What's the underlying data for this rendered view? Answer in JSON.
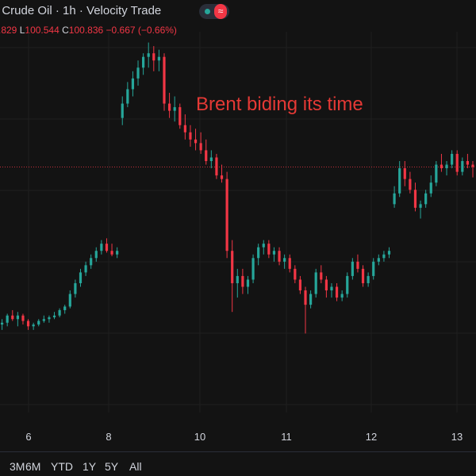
{
  "header": {
    "title_text": "t Crude Oil · 1h · Velocity Trade",
    "status_wave_glyph": "≈",
    "ohlc": {
      "h_value": ".829",
      "l_key": "L",
      "l_value": "100.544",
      "c_key": "C",
      "c_value": "100.836",
      "change": "−0.667 (−0.66%)"
    }
  },
  "annotation": "Brent biding its time",
  "range_buttons": [
    "3M",
    "6M",
    "YTD",
    "1Y",
    "5Y",
    "All"
  ],
  "colors": {
    "background": "#131313",
    "up": "#26a69a",
    "down": "#f23645",
    "grid": "#1f1f1f",
    "annotation": "#e53935",
    "price_line": "#f23645"
  },
  "chart_data": {
    "type": "candlestick",
    "x_ticks": [
      "6",
      "8",
      "10",
      "11",
      "12",
      "13"
    ],
    "x_tick_positions": [
      5.5,
      7.5,
      9.5,
      11,
      12.5,
      13.8
    ],
    "y_range": [
      94.0,
      104.6
    ],
    "current_price": 100.836,
    "grid": true,
    "series": [
      {
        "name": "",
        "values": [
          [
            96.35,
            96.55,
            96.2,
            96.45
          ],
          [
            96.45,
            96.6,
            96.3,
            96.5
          ],
          [
            96.5,
            96.75,
            96.4,
            96.7
          ],
          [
            96.7,
            96.85,
            96.55,
            96.6
          ],
          [
            96.6,
            96.8,
            96.4,
            96.7
          ],
          [
            96.7,
            96.75,
            96.45,
            96.55
          ],
          [
            96.55,
            96.6,
            96.3,
            96.4
          ],
          [
            96.4,
            96.5,
            96.3,
            96.45
          ],
          [
            96.45,
            96.6,
            96.4,
            96.55
          ],
          [
            96.55,
            96.7,
            96.5,
            96.6
          ],
          [
            96.6,
            96.7,
            96.5,
            96.65
          ],
          [
            96.65,
            96.8,
            96.6,
            96.7
          ],
          [
            96.7,
            96.9,
            96.65,
            96.85
          ],
          [
            96.85,
            97.0,
            96.75,
            96.95
          ],
          [
            96.95,
            97.4,
            96.9,
            97.3
          ],
          [
            97.3,
            97.7,
            97.2,
            97.6
          ],
          [
            97.6,
            98.0,
            97.5,
            97.9
          ],
          [
            97.9,
            98.2,
            97.8,
            98.1
          ],
          [
            98.1,
            98.4,
            98.0,
            98.3
          ],
          [
            98.3,
            98.6,
            98.2,
            98.5
          ],
          [
            98.5,
            98.8,
            98.4,
            98.7
          ],
          [
            98.7,
            98.85,
            98.45,
            98.5
          ],
          [
            98.5,
            98.7,
            98.35,
            98.4
          ],
          [
            98.4,
            98.6,
            98.3,
            98.5
          ],
          [
            102.2,
            102.8,
            102.0,
            102.6
          ],
          [
            102.6,
            103.2,
            102.5,
            103.0
          ],
          [
            103.0,
            103.5,
            102.8,
            103.3
          ],
          [
            103.3,
            103.8,
            103.1,
            103.6
          ],
          [
            103.6,
            104.0,
            103.4,
            103.9
          ],
          [
            103.9,
            104.3,
            103.6,
            104.0
          ],
          [
            104.0,
            104.2,
            103.5,
            103.8
          ],
          [
            103.8,
            104.1,
            103.5,
            103.9
          ],
          [
            103.9,
            104.0,
            102.4,
            102.6
          ],
          [
            102.6,
            102.9,
            102.2,
            102.4
          ],
          [
            102.4,
            102.8,
            102.1,
            102.5
          ],
          [
            102.5,
            102.6,
            101.9,
            102.0
          ],
          [
            102.0,
            102.3,
            101.6,
            101.8
          ],
          [
            101.8,
            102.0,
            101.4,
            101.6
          ],
          [
            101.6,
            101.9,
            101.3,
            101.5
          ],
          [
            101.5,
            101.8,
            101.2,
            101.3
          ],
          [
            101.3,
            101.6,
            100.9,
            101.0
          ],
          [
            101.0,
            101.3,
            100.8,
            101.1
          ],
          [
            101.1,
            101.2,
            100.5,
            100.6
          ],
          [
            100.6,
            100.9,
            100.4,
            100.5
          ],
          [
            100.5,
            100.7,
            98.3,
            98.5
          ],
          [
            98.5,
            98.8,
            96.8,
            97.6
          ],
          [
            97.6,
            98.0,
            97.2,
            97.8
          ],
          [
            97.8,
            98.0,
            97.3,
            97.5
          ],
          [
            97.5,
            97.8,
            97.3,
            97.7
          ],
          [
            97.7,
            98.4,
            97.6,
            98.3
          ],
          [
            98.3,
            98.7,
            98.1,
            98.6
          ],
          [
            98.6,
            98.8,
            98.4,
            98.7
          ],
          [
            98.7,
            98.8,
            98.3,
            98.4
          ],
          [
            98.4,
            98.6,
            98.2,
            98.5
          ],
          [
            98.5,
            98.6,
            98.1,
            98.2
          ],
          [
            98.2,
            98.4,
            98.0,
            98.3
          ],
          [
            98.3,
            98.4,
            97.9,
            98.0
          ],
          [
            98.0,
            98.1,
            97.6,
            97.7
          ],
          [
            97.7,
            97.8,
            97.3,
            97.4
          ],
          [
            97.4,
            97.5,
            96.2,
            97.0
          ],
          [
            97.0,
            97.4,
            96.9,
            97.3
          ],
          [
            97.3,
            98.0,
            97.2,
            97.9
          ],
          [
            97.9,
            98.1,
            97.6,
            97.7
          ],
          [
            97.7,
            97.8,
            97.2,
            97.4
          ],
          [
            97.4,
            97.6,
            97.2,
            97.5
          ],
          [
            97.5,
            97.6,
            97.1,
            97.2
          ],
          [
            97.2,
            97.4,
            97.1,
            97.3
          ],
          [
            97.3,
            97.9,
            97.2,
            97.8
          ],
          [
            97.8,
            98.3,
            97.7,
            98.2
          ],
          [
            98.2,
            98.4,
            97.9,
            98.0
          ],
          [
            98.0,
            98.1,
            97.5,
            97.6
          ],
          [
            97.6,
            97.9,
            97.5,
            97.8
          ],
          [
            97.8,
            98.3,
            97.7,
            98.2
          ],
          [
            98.2,
            98.4,
            98.1,
            98.3
          ],
          [
            98.3,
            98.5,
            98.2,
            98.4
          ],
          [
            98.4,
            98.6,
            98.3,
            98.5
          ],
          [
            99.8,
            100.3,
            99.7,
            100.1
          ],
          [
            100.1,
            101.0,
            100.0,
            100.8
          ],
          [
            100.8,
            101.0,
            100.3,
            100.5
          ],
          [
            100.5,
            100.7,
            100.1,
            100.2
          ],
          [
            100.2,
            100.4,
            99.6,
            99.7
          ],
          [
            99.7,
            99.9,
            99.4,
            99.8
          ],
          [
            99.8,
            100.2,
            99.7,
            100.1
          ],
          [
            100.1,
            100.6,
            100.0,
            100.4
          ],
          [
            100.4,
            101.0,
            100.3,
            100.9
          ],
          [
            100.9,
            101.2,
            100.7,
            100.8
          ],
          [
            100.8,
            101.0,
            100.6,
            100.9
          ],
          [
            100.9,
            101.3,
            100.8,
            101.2
          ],
          [
            101.2,
            101.3,
            100.6,
            100.7
          ],
          [
            100.7,
            101.1,
            100.6,
            101.0
          ],
          [
            101.0,
            101.2,
            100.8,
            100.9
          ],
          [
            100.9,
            101.0,
            100.544,
            100.836
          ]
        ]
      }
    ]
  }
}
